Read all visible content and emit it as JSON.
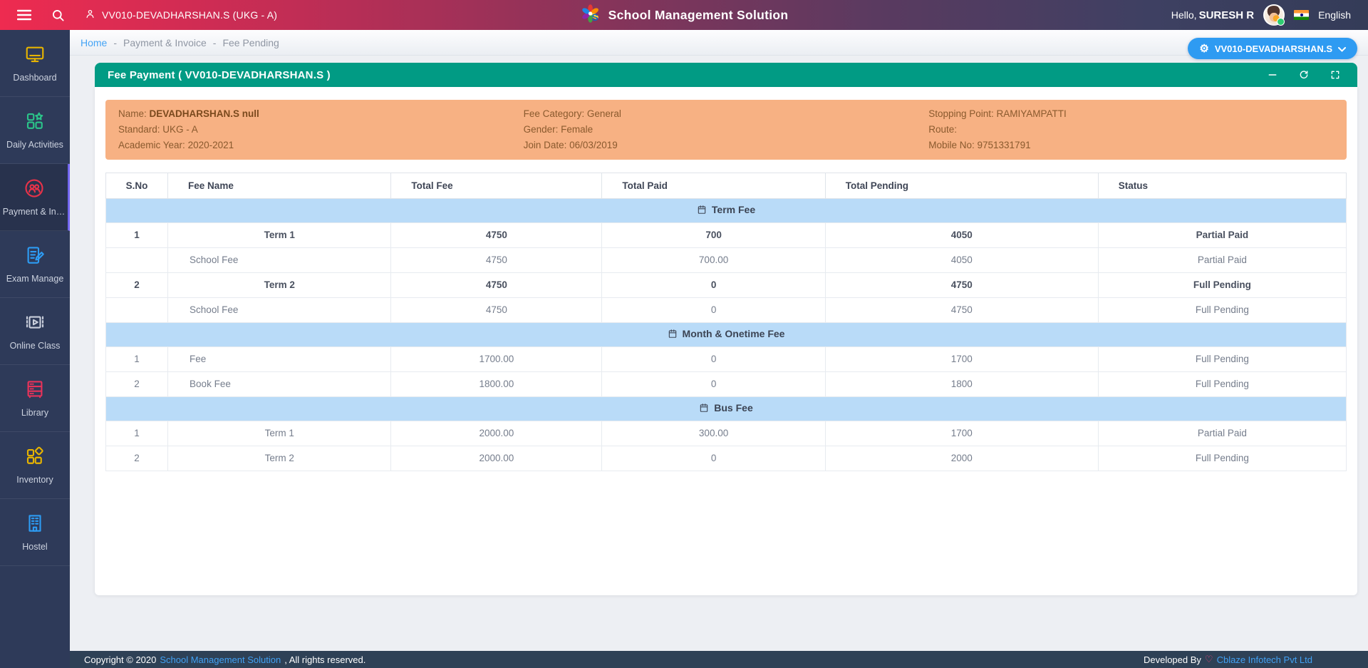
{
  "colors": {
    "accent": "#2e9bf2",
    "header_green": "#019b84",
    "info_bg": "#f7b183",
    "info_text": "#8a5a2e",
    "section_bg": "#b9dbf8",
    "sidebar_bg": "#2e3a59",
    "footer_bg": "#2e4156"
  },
  "header": {
    "student_badge": "VV010-DEVADHARSHAN.S (UKG - A)",
    "app_title": "School Management Solution",
    "greeting_prefix": "Hello,",
    "user_name": "SURESH R",
    "language": "English"
  },
  "sidebar": {
    "items": [
      {
        "label": "Dashboard",
        "icon": "monitor-icon",
        "color": "#e7b400",
        "active": false
      },
      {
        "label": "Daily Activities",
        "icon": "activities-icon",
        "color": "#2bc48a",
        "active": false
      },
      {
        "label": "Payment & In…",
        "icon": "payment-users-icon",
        "color": "#e73249",
        "active": true
      },
      {
        "label": "Exam Manage",
        "icon": "exam-pencil-icon",
        "color": "#2d9cf4",
        "active": false
      },
      {
        "label": "Online Class",
        "icon": "video-class-icon",
        "color": "#c9cedb",
        "active": false
      },
      {
        "label": "Library",
        "icon": "library-shelf-icon",
        "color": "#e8335a",
        "active": false
      },
      {
        "label": "Inventory",
        "icon": "inventory-icon",
        "color": "#e7b400",
        "active": false
      },
      {
        "label": "Hostel",
        "icon": "hostel-icon",
        "color": "#2d9cf4",
        "active": false
      }
    ]
  },
  "breadcrumb": {
    "separator": "-",
    "items": [
      "Home",
      "Payment & Invoice",
      "Fee Pending"
    ]
  },
  "profile_button": {
    "label": "VV010-DEVADHARSHAN.S"
  },
  "panel": {
    "title": "Fee Payment ( VV010-DEVADHARSHAN.S )"
  },
  "student_info": {
    "columns": [
      [
        {
          "label": "Name:",
          "value": "DEVADHARSHAN.S null",
          "bold": true
        },
        {
          "label": "Standard:",
          "value": "UKG - A"
        },
        {
          "label": "Academic Year:",
          "value": "2020-2021"
        }
      ],
      [
        {
          "label": "Fee Category:",
          "value": "General"
        },
        {
          "label": "Gender:",
          "value": "Female"
        },
        {
          "label": "Join Date:",
          "value": "06/03/2019"
        }
      ],
      [
        {
          "label": "Stopping Point:",
          "value": "RAMIYAMPATTI"
        },
        {
          "label": "Route:",
          "value": ""
        },
        {
          "label": "Mobile No:",
          "value": "9751331791"
        }
      ]
    ]
  },
  "fee_table": {
    "columns": [
      "S.No",
      "Fee Name",
      "Total Fee",
      "Total Paid",
      "Total Pending",
      "Status"
    ],
    "col_widths_pct": [
      5,
      18,
      17,
      18,
      22,
      20
    ],
    "sections": [
      {
        "title": "Term Fee",
        "rows": [
          {
            "sno": "1",
            "fee_name": "Term 1",
            "total_fee": "4750",
            "total_paid": "700",
            "total_pending": "4050",
            "status": "Partial Paid",
            "bold": true,
            "name_align": "center"
          },
          {
            "sno": "",
            "fee_name": "School Fee",
            "total_fee": "4750",
            "total_paid": "700.00",
            "total_pending": "4050",
            "status": "Partial Paid",
            "bold": false,
            "name_align": "left"
          },
          {
            "sno": "2",
            "fee_name": "Term 2",
            "total_fee": "4750",
            "total_paid": "0",
            "total_pending": "4750",
            "status": "Full Pending",
            "bold": true,
            "name_align": "center"
          },
          {
            "sno": "",
            "fee_name": "School Fee",
            "total_fee": "4750",
            "total_paid": "0",
            "total_pending": "4750",
            "status": "Full Pending",
            "bold": false,
            "name_align": "left"
          }
        ]
      },
      {
        "title": "Month & Onetime Fee",
        "rows": [
          {
            "sno": "1",
            "fee_name": "Fee",
            "total_fee": "1700.00",
            "total_paid": "0",
            "total_pending": "1700",
            "status": "Full Pending",
            "bold": false,
            "name_align": "left"
          },
          {
            "sno": "2",
            "fee_name": "Book Fee",
            "total_fee": "1800.00",
            "total_paid": "0",
            "total_pending": "1800",
            "status": "Full Pending",
            "bold": false,
            "name_align": "left"
          }
        ]
      },
      {
        "title": "Bus Fee",
        "rows": [
          {
            "sno": "1",
            "fee_name": "Term 1",
            "total_fee": "2000.00",
            "total_paid": "300.00",
            "total_pending": "1700",
            "status": "Partial Paid",
            "bold": false,
            "name_align": "center"
          },
          {
            "sno": "2",
            "fee_name": "Term 2",
            "total_fee": "2000.00",
            "total_paid": "0",
            "total_pending": "2000",
            "status": "Full Pending",
            "bold": false,
            "name_align": "center"
          }
        ]
      }
    ]
  },
  "footer": {
    "copyright_prefix": "Copyright © 2020",
    "copyright_link": "School Management Solution",
    "copyright_suffix": ", All rights reserved.",
    "developed_by": "Developed By",
    "developer_link": "Cblaze Infotech Pvt Ltd"
  }
}
